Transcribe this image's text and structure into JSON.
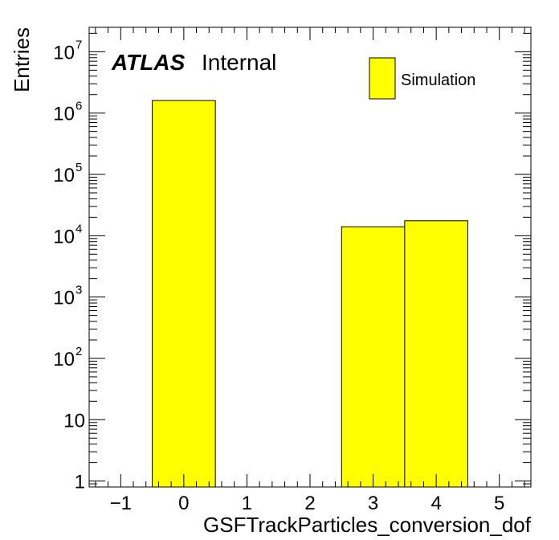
{
  "chart_data": {
    "type": "bar",
    "title": "",
    "xlabel": "GSFTrackParticles_conversion_dof",
    "ylabel": "Entries",
    "xlim": [
      -1.5,
      5.5
    ],
    "ylim": [
      0.8,
      25000000
    ],
    "yscale": "log",
    "grid": false,
    "legend_position": "top-right",
    "fill_color": "#ffff00",
    "edge_color": "#000000",
    "bins": [
      {
        "low": -0.5,
        "high": 0.5,
        "value": 1600000
      },
      {
        "low": 2.5,
        "high": 3.5,
        "value": 14000
      },
      {
        "low": 3.5,
        "high": 4.5,
        "value": 17500
      }
    ],
    "series": [
      {
        "name": "Simulation"
      }
    ],
    "x_ticks": [
      {
        "value": -1,
        "label": "−1"
      },
      {
        "value": 0,
        "label": "0"
      },
      {
        "value": 1,
        "label": "1"
      },
      {
        "value": 2,
        "label": "2"
      },
      {
        "value": 3,
        "label": "3"
      },
      {
        "value": 4,
        "label": "4"
      },
      {
        "value": 5,
        "label": "5"
      }
    ],
    "y_ticks": [
      {
        "value": 1,
        "base": "1",
        "exp": ""
      },
      {
        "value": 10,
        "base": "10",
        "exp": ""
      },
      {
        "value": 100,
        "base": "10",
        "exp": "2"
      },
      {
        "value": 1000,
        "base": "10",
        "exp": "3"
      },
      {
        "value": 10000,
        "base": "10",
        "exp": "4"
      },
      {
        "value": 100000,
        "base": "10",
        "exp": "5"
      },
      {
        "value": 1000000,
        "base": "10",
        "exp": "6"
      },
      {
        "value": 10000000,
        "base": "10",
        "exp": "7"
      }
    ],
    "annotations": {
      "experiment": "ATLAS",
      "status": "Internal"
    }
  }
}
